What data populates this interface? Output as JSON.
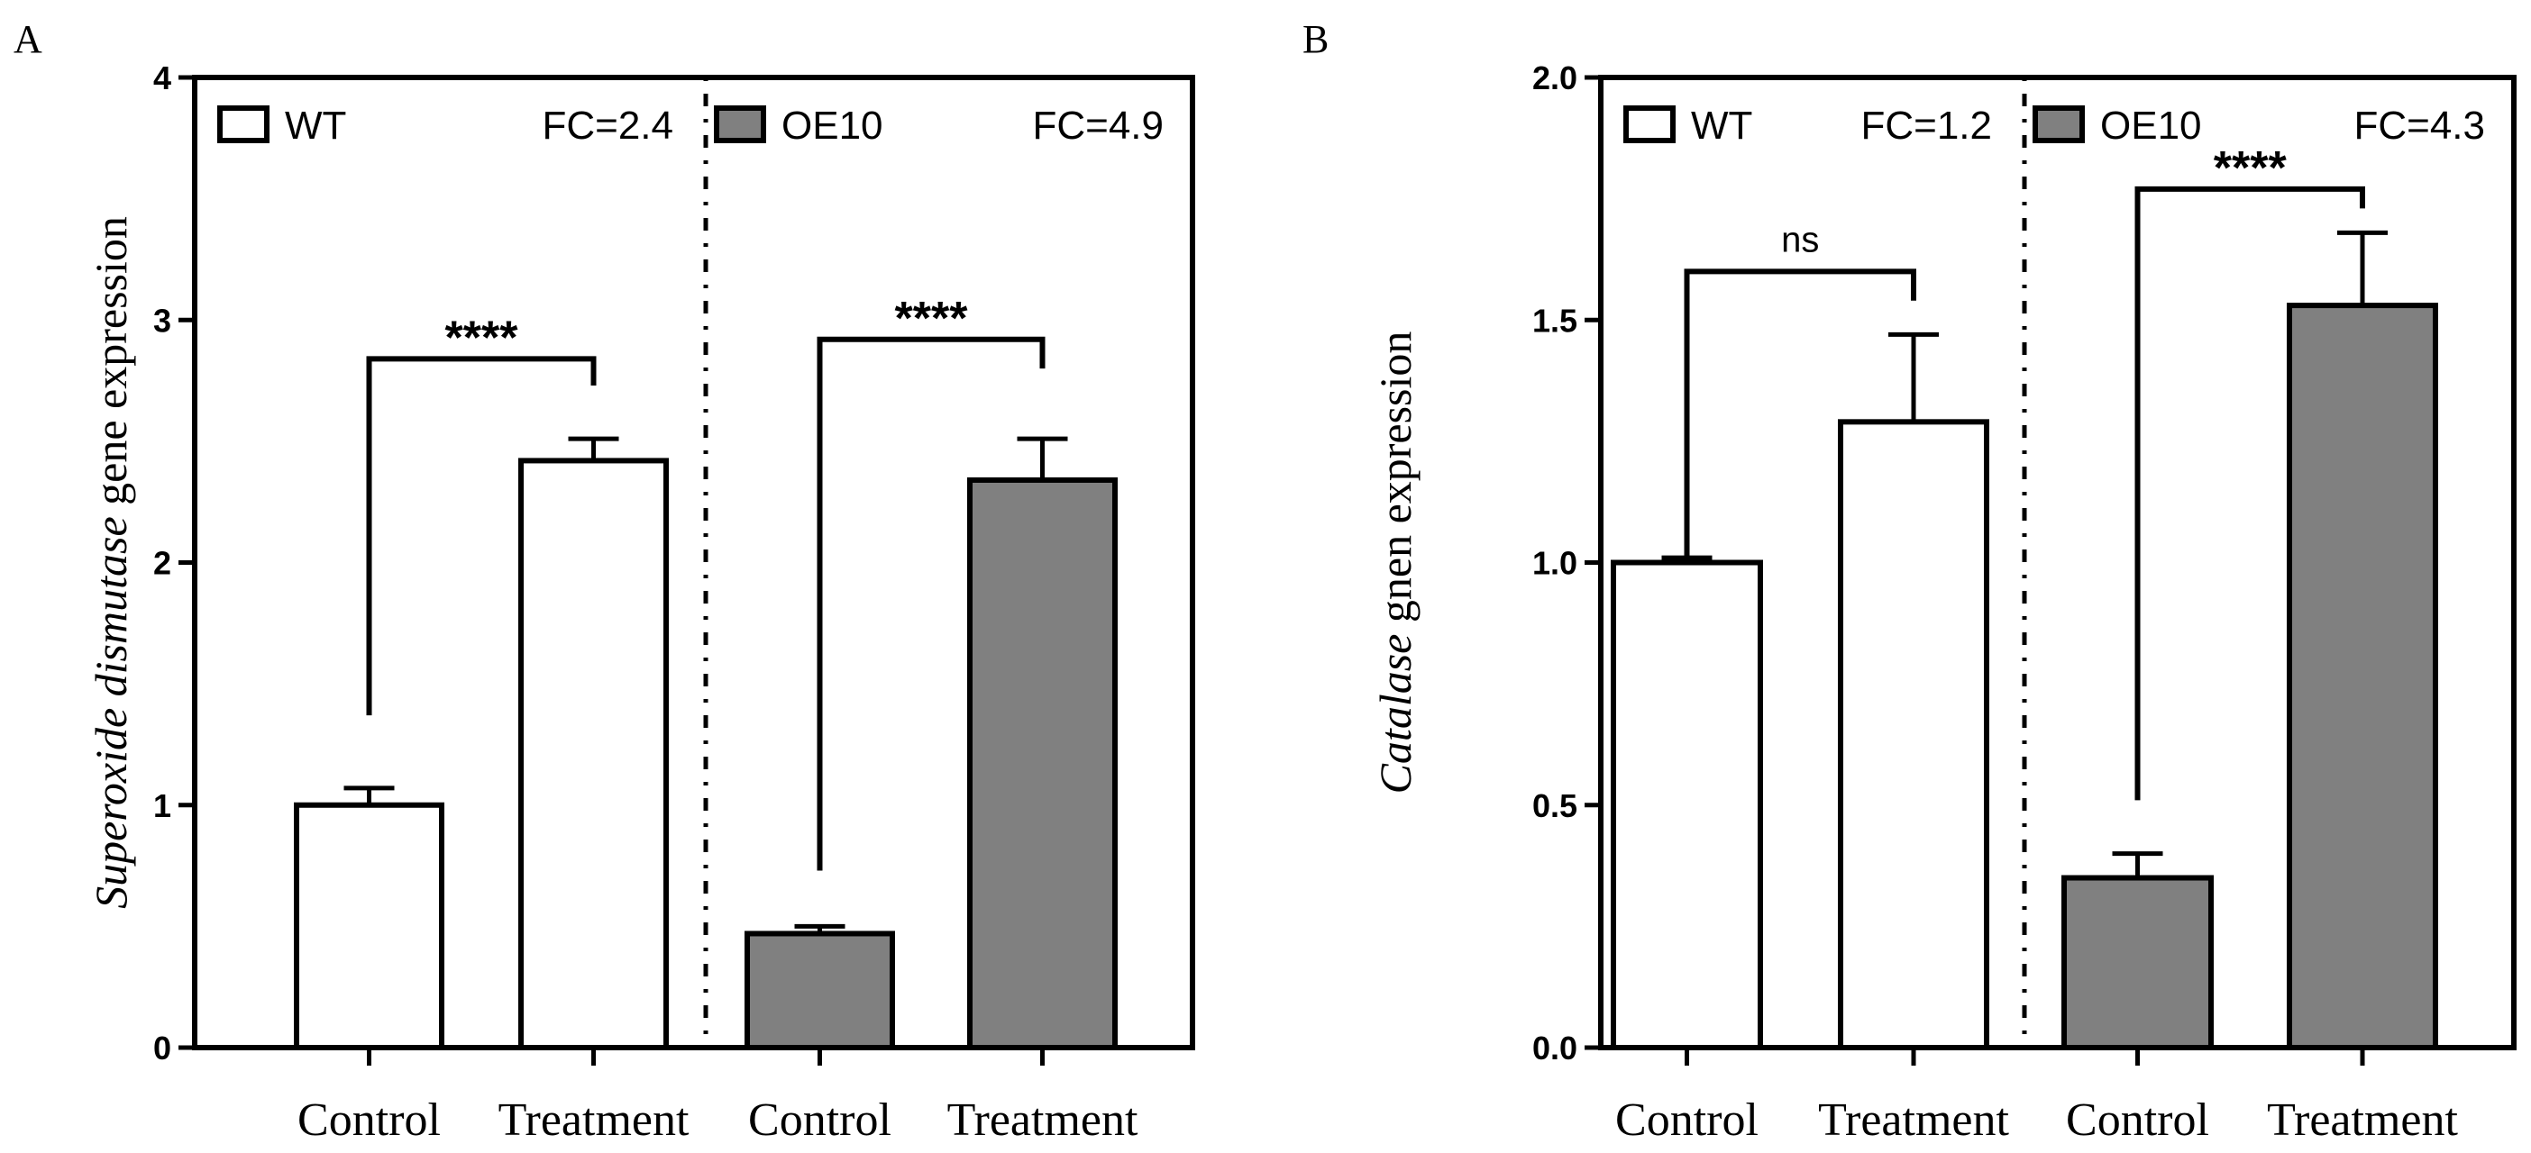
{
  "chart_data": [
    {
      "type": "bar",
      "panel_label": "A",
      "ylabel_italic": "Superoxide dismutase",
      "ylabel_rest": " gene expression",
      "ylim": [
        0,
        4
      ],
      "yticks": [
        0,
        1,
        2,
        3,
        4
      ],
      "ytick_labels": [
        "0",
        "1",
        "2",
        "3",
        "4"
      ],
      "categories": [
        "Control",
        "Treatment",
        "Control",
        "Treatment"
      ],
      "groups": [
        {
          "legend": "WT",
          "fc_label": "FC=2.4",
          "fill": "#ffffff",
          "bars": [
            {
              "category": "Control",
              "value": 1.0,
              "error": 0.07
            },
            {
              "category": "Treatment",
              "value": 2.42,
              "error": 0.09
            }
          ],
          "significance": "****",
          "bracket_y": 2.84,
          "bracket_left_bottom": 1.37,
          "bracket_right_bottom": 2.73
        },
        {
          "legend": "OE10",
          "fc_label": "FC=4.9",
          "fill": "#808080",
          "bars": [
            {
              "category": "Control",
              "value": 0.47,
              "error": 0.03
            },
            {
              "category": "Treatment",
              "value": 2.34,
              "error": 0.17
            }
          ],
          "significance": "****",
          "bracket_y": 2.92,
          "bracket_left_bottom": 0.73,
          "bracket_right_bottom": 2.8
        }
      ],
      "grid": false,
      "legend_position": "top"
    },
    {
      "type": "bar",
      "panel_label": "B",
      "ylabel_italic": "Catalase",
      "ylabel_rest": " gnen expression",
      "ylim": [
        0,
        2.0
      ],
      "yticks": [
        0,
        0.5,
        1.0,
        1.5,
        2.0
      ],
      "ytick_labels": [
        "0.0",
        "0.5",
        "1.0",
        "1.5",
        "2.0"
      ],
      "categories": [
        "Control",
        "Treatment",
        "Control",
        "Treatment"
      ],
      "groups": [
        {
          "legend": "WT",
          "fc_label": "FC=1.2",
          "fill": "#ffffff",
          "bars": [
            {
              "category": "Control",
              "value": 1.0,
              "error": 0.01
            },
            {
              "category": "Treatment",
              "value": 1.29,
              "error": 0.18
            }
          ],
          "significance": "ns",
          "bracket_y": 1.6,
          "bracket_left_bottom": 1.0,
          "bracket_right_bottom": 1.54
        },
        {
          "legend": "OE10",
          "fc_label": "FC=4.3",
          "fill": "#808080",
          "bars": [
            {
              "category": "Control",
              "value": 0.35,
              "error": 0.05
            },
            {
              "category": "Treatment",
              "value": 1.53,
              "error": 0.15
            }
          ],
          "significance": "****",
          "bracket_y": 1.77,
          "bracket_left_bottom": 0.51,
          "bracket_right_bottom": 1.73
        }
      ],
      "grid": false,
      "legend_position": "top"
    }
  ]
}
